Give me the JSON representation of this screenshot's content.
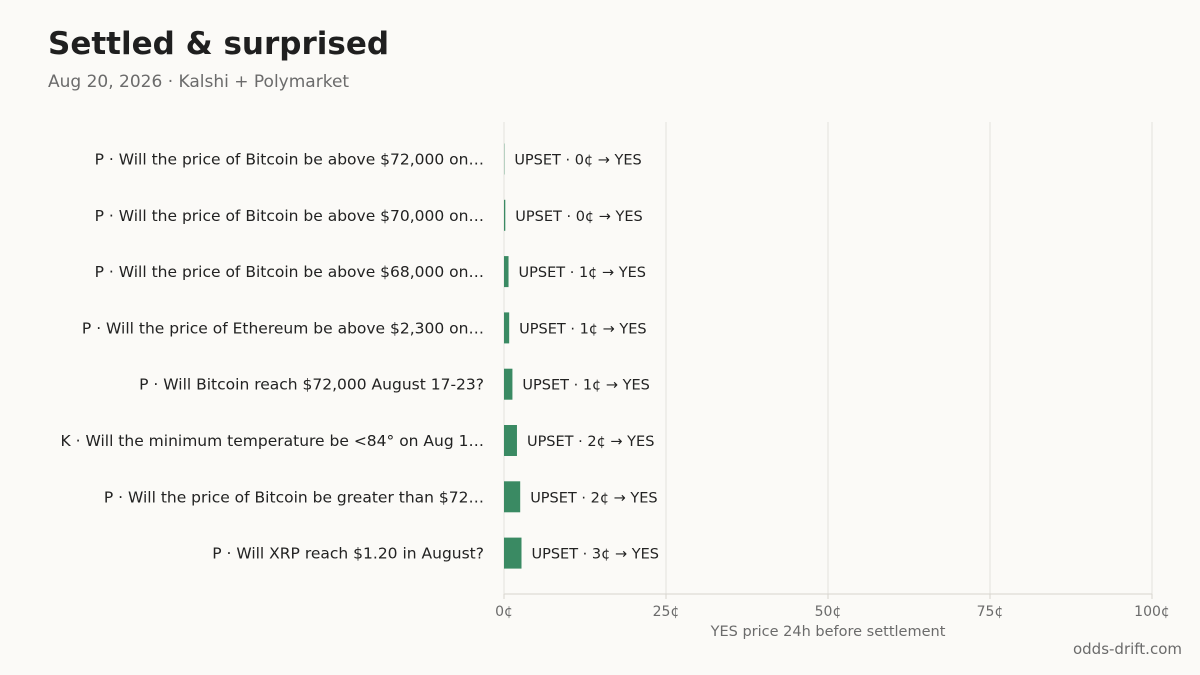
{
  "header": {
    "title": "Settled & surprised",
    "subtitle": "Aug 20, 2026 · Kalshi + Polymarket"
  },
  "footer": {
    "source": "odds-drift.com"
  },
  "colors": {
    "bar": "#3a8a63",
    "grid": "#e3e1dc",
    "axis": "#d7d4ce",
    "text": "#222222",
    "muted": "#6b6b6b"
  },
  "chart_data": {
    "type": "bar",
    "orientation": "horizontal",
    "title": "",
    "xlabel": "YES price 24h before settlement",
    "ylabel": "",
    "xlim": [
      0,
      100
    ],
    "x_ticks": [
      0,
      25,
      50,
      75,
      100
    ],
    "x_tick_labels": [
      "0¢",
      "25¢",
      "50¢",
      "75¢",
      "100¢"
    ],
    "grid": "vertical",
    "categories": [
      "P · Will the price of Bitcoin be above $72,000 on…",
      "P · Will the price of Bitcoin be above $70,000 on…",
      "P · Will the price of Bitcoin be above $68,000 on…",
      "P · Will the price of Ethereum be above $2,300 on…",
      "P · Will Bitcoin reach $72,000 August 17-23?",
      "K · Will the minimum temperature be <84° on Aug 1…",
      "P · Will the price of Bitcoin be greater than $72…",
      "P · Will XRP reach $1.20 in August?"
    ],
    "values": [
      0.05,
      0.2,
      0.7,
      0.8,
      1.3,
      2.0,
      2.5,
      2.7
    ],
    "data_labels": [
      "UPSET · 0¢ → YES",
      "UPSET · 0¢ → YES",
      "UPSET · 1¢ → YES",
      "UPSET · 1¢ → YES",
      "UPSET · 1¢ → YES",
      "UPSET · 2¢ → YES",
      "UPSET · 2¢ → YES",
      "UPSET · 3¢ → YES"
    ]
  }
}
